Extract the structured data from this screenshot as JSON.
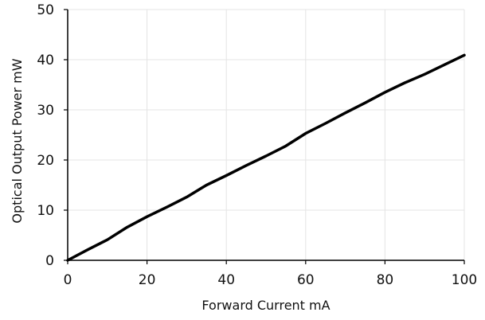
{
  "chart_data": {
    "type": "line",
    "title": "",
    "xlabel": "Forward Current  mA",
    "ylabel": "Optical Output Power  mW",
    "xlim": [
      0,
      100
    ],
    "ylim": [
      0,
      50
    ],
    "x_ticks": [
      0,
      20,
      40,
      60,
      80,
      100
    ],
    "y_ticks": [
      0,
      10,
      20,
      30,
      40,
      50
    ],
    "grid": true,
    "legend": "none",
    "colors": {
      "line": "#000000",
      "grid": "#e4e4e4",
      "axis": "#000000"
    },
    "series": [
      {
        "x": [
          0,
          5,
          10,
          15,
          20,
          25,
          30,
          35,
          40,
          45,
          50,
          55,
          60,
          65,
          70,
          75,
          80,
          85,
          90,
          95,
          100
        ],
        "values": [
          0,
          2.1,
          4.1,
          6.6,
          8.7,
          10.6,
          12.6,
          15.0,
          16.9,
          18.9,
          20.8,
          22.8,
          25.3,
          27.3,
          29.4,
          31.4,
          33.5,
          35.4,
          37.1,
          39.0,
          40.9
        ]
      }
    ]
  }
}
